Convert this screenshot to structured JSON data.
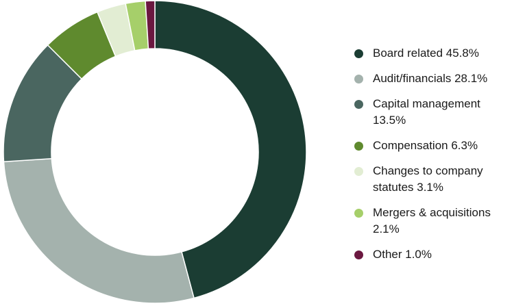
{
  "chart_data": {
    "type": "pie",
    "variant": "donut",
    "title": "",
    "legend_position": "right",
    "slices": [
      {
        "label": "Board related 45.8%",
        "value": 45.8,
        "color": "#1b3d33"
      },
      {
        "label": "Audit/financials 28.1%",
        "value": 28.1,
        "color": "#a4b2ad"
      },
      {
        "label": "Capital management 13.5%",
        "value": 13.5,
        "color": "#4a6660"
      },
      {
        "label": "Compensation 6.3%",
        "value": 6.3,
        "color": "#5f8a2e"
      },
      {
        "label": "Changes to company statutes 3.1%",
        "value": 3.1,
        "color": "#e2edd3"
      },
      {
        "label": "Mergers & acquisitions 2.1%",
        "value": 2.1,
        "color": "#a6cf6a"
      },
      {
        "label": "Other 1.0%",
        "value": 1.0,
        "color": "#6b1840"
      }
    ]
  }
}
